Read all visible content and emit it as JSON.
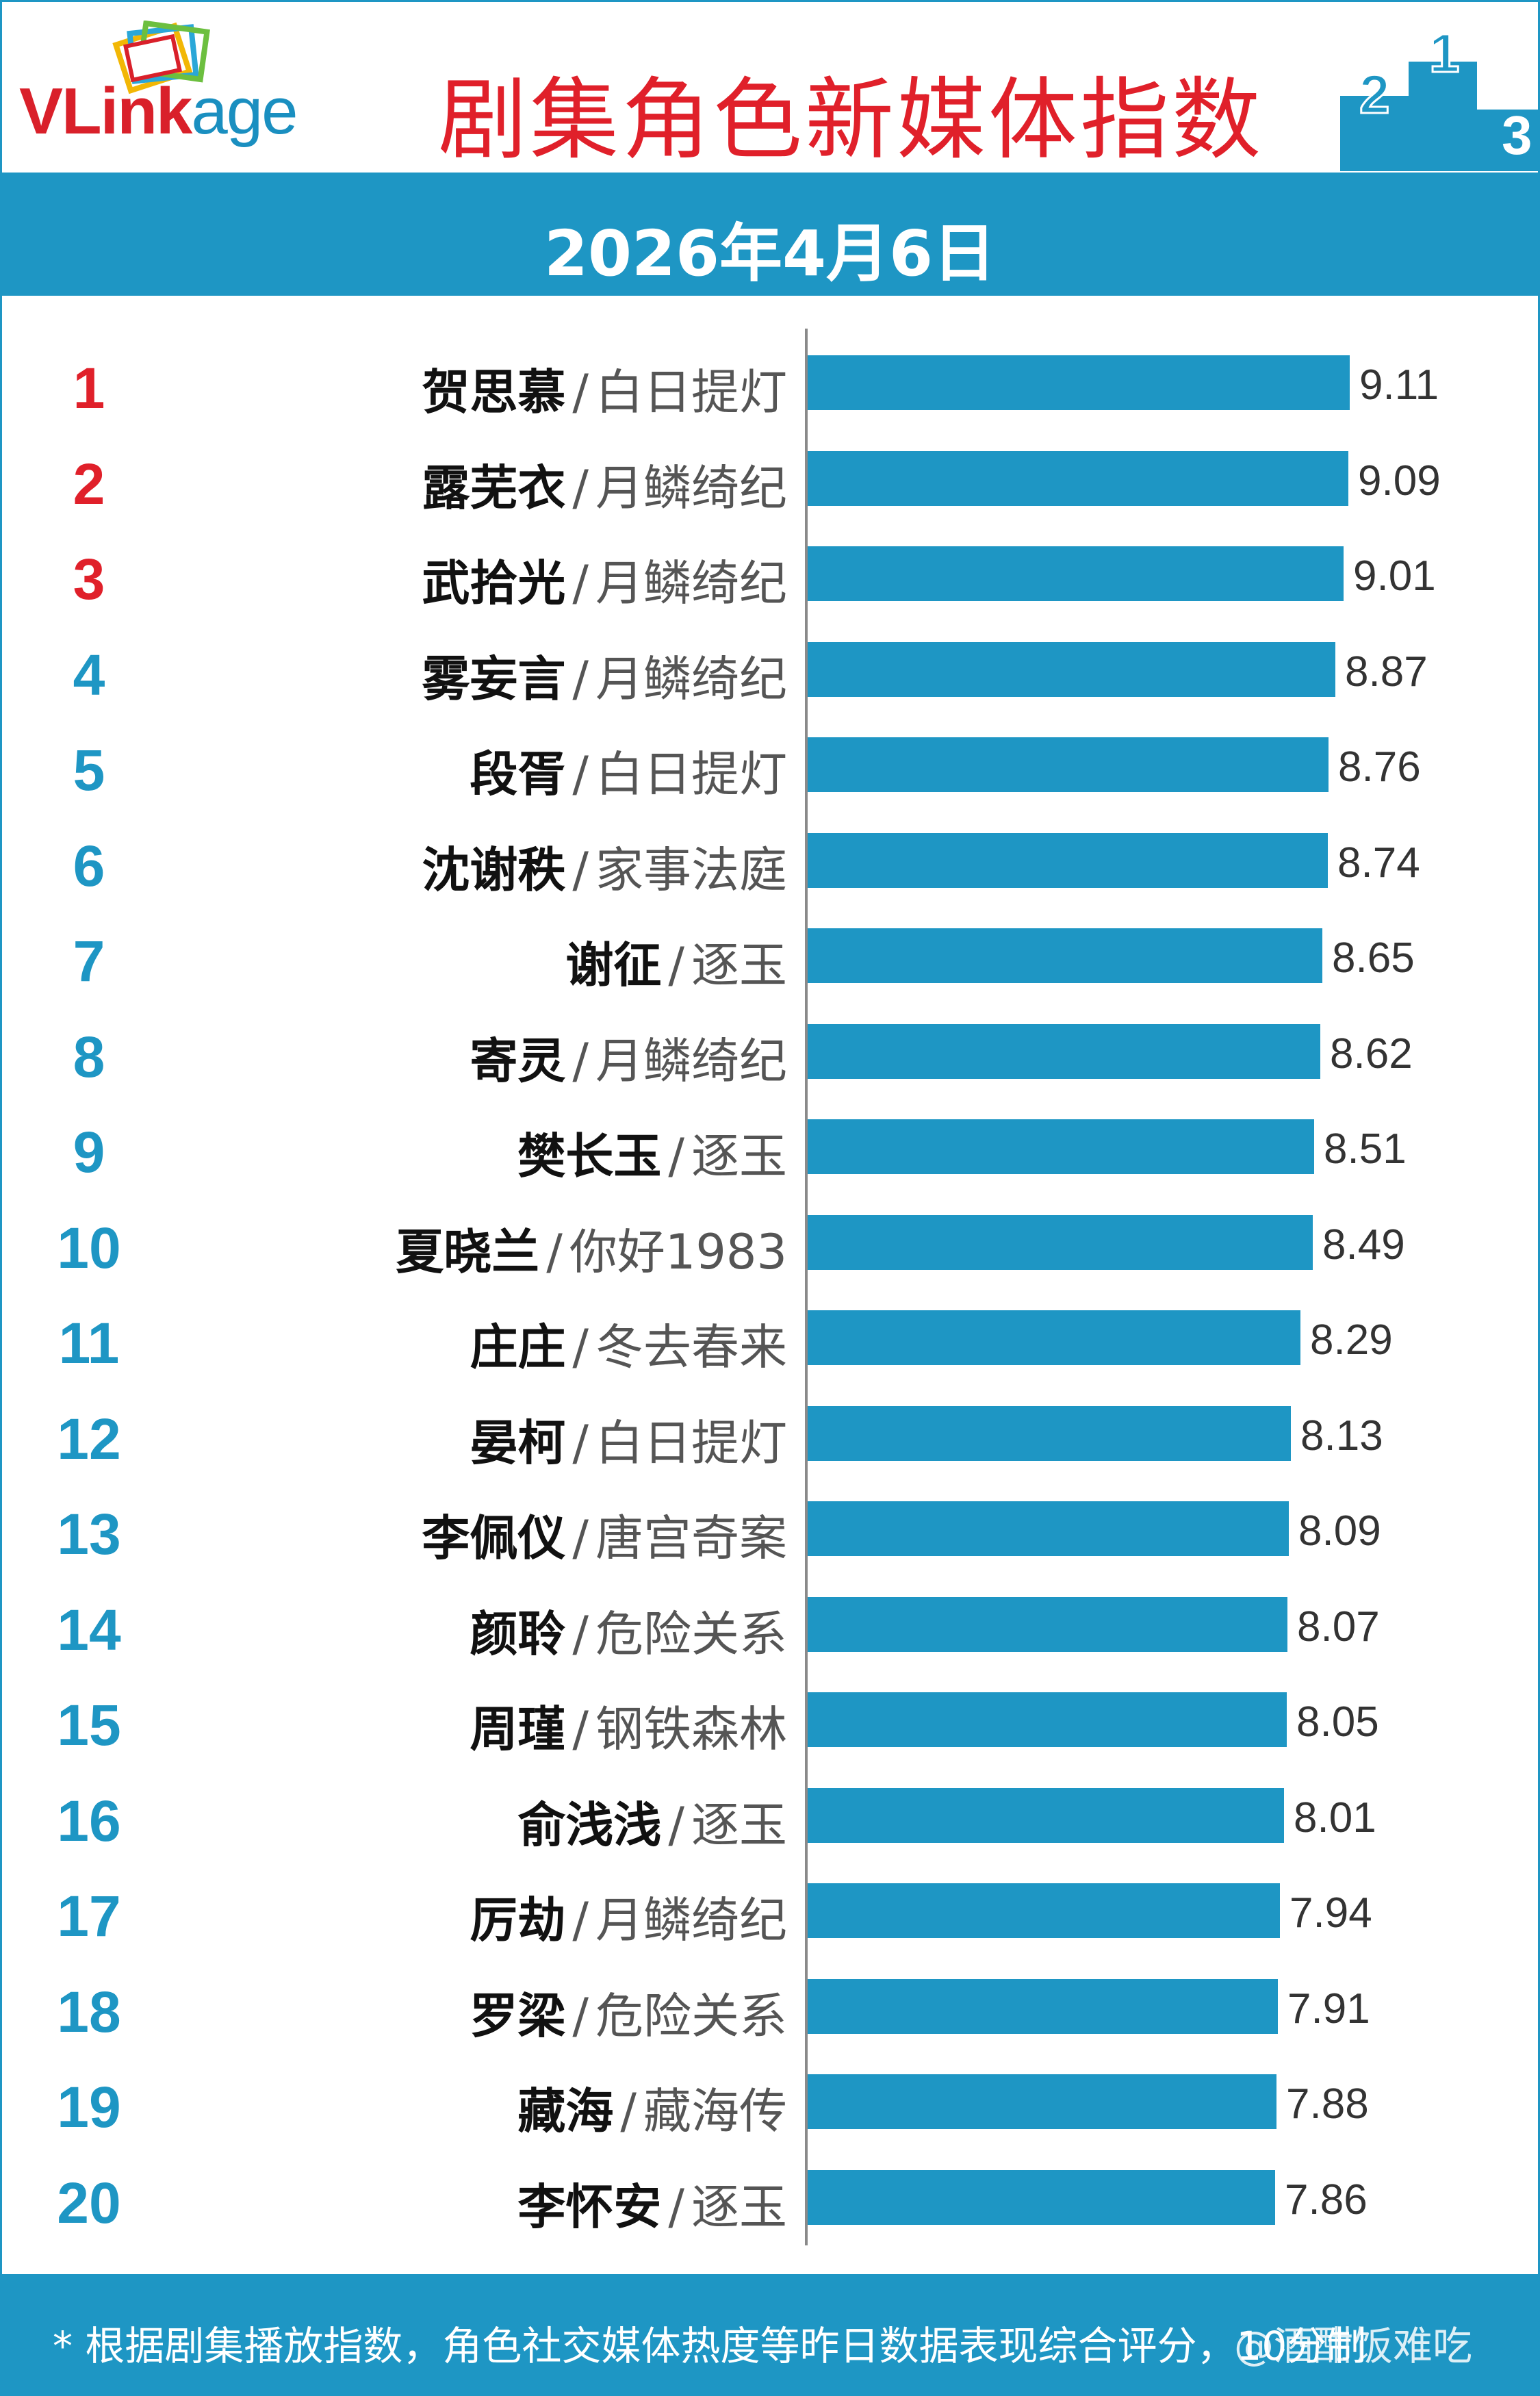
{
  "header": {
    "logo": {
      "part1": "VL",
      "part2": "ink",
      "part3": "age"
    },
    "title": "剧集角色新媒体指数",
    "date": "2026年4月6日",
    "podium_digits": [
      "2",
      "1",
      "3"
    ]
  },
  "colors": {
    "accent": "#1e96c4",
    "title_red": "#e0202a",
    "top3_rank": "#e0202a"
  },
  "chart_data": {
    "type": "bar",
    "orientation": "horizontal",
    "title": "剧集角色新媒体指数",
    "xlim": [
      0,
      10
    ],
    "rows": [
      {
        "rank": "1",
        "name": "贺思慕",
        "show": "白日提灯",
        "value": 9.11,
        "label": "9.11"
      },
      {
        "rank": "2",
        "name": "露芜衣",
        "show": "月鳞绮纪",
        "value": 9.09,
        "label": "9.09"
      },
      {
        "rank": "3",
        "name": "武拾光",
        "show": "月鳞绮纪",
        "value": 9.01,
        "label": "9.01"
      },
      {
        "rank": "4",
        "name": "雾妄言",
        "show": "月鳞绮纪",
        "value": 8.87,
        "label": "8.87"
      },
      {
        "rank": "5",
        "name": "段胥",
        "show": "白日提灯",
        "value": 8.76,
        "label": "8.76"
      },
      {
        "rank": "6",
        "name": "沈谢秩",
        "show": "家事法庭",
        "value": 8.74,
        "label": "8.74"
      },
      {
        "rank": "7",
        "name": "谢征",
        "show": "逐玉",
        "value": 8.65,
        "label": "8.65"
      },
      {
        "rank": "8",
        "name": "寄灵",
        "show": "月鳞绮纪",
        "value": 8.62,
        "label": "8.62"
      },
      {
        "rank": "9",
        "name": "樊长玉",
        "show": "逐玉",
        "value": 8.51,
        "label": "8.51"
      },
      {
        "rank": "10",
        "name": "夏晓兰",
        "show": "你好1983",
        "value": 8.49,
        "label": "8.49"
      },
      {
        "rank": "11",
        "name": "庄庄",
        "show": "冬去春来",
        "value": 8.29,
        "label": "8.29"
      },
      {
        "rank": "12",
        "name": "晏柯",
        "show": "白日提灯",
        "value": 8.13,
        "label": "8.13"
      },
      {
        "rank": "13",
        "name": "李佩仪",
        "show": "唐宫奇案",
        "value": 8.09,
        "label": "8.09"
      },
      {
        "rank": "14",
        "name": "颜聆",
        "show": "危险关系",
        "value": 8.07,
        "label": "8.07"
      },
      {
        "rank": "15",
        "name": "周瑾",
        "show": "钢铁森林",
        "value": 8.05,
        "label": "8.05"
      },
      {
        "rank": "16",
        "name": "俞浅浅",
        "show": "逐玉",
        "value": 8.01,
        "label": "8.01"
      },
      {
        "rank": "17",
        "name": "厉劫",
        "show": "月鳞绮纪",
        "value": 7.94,
        "label": "7.94"
      },
      {
        "rank": "18",
        "name": "罗梁",
        "show": "危险关系",
        "value": 7.91,
        "label": "7.91"
      },
      {
        "rank": "19",
        "name": "藏海",
        "show": "藏海传",
        "value": 7.88,
        "label": "7.88"
      },
      {
        "rank": "20",
        "name": "李怀安",
        "show": "逐玉",
        "value": 7.86,
        "label": "7.86"
      }
    ]
  },
  "footer": {
    "note": "* 根据剧集播放指数，角色社交媒体热度等昨日数据表现综合评分，10分制",
    "watermark": "@酒酣饭难吃"
  }
}
